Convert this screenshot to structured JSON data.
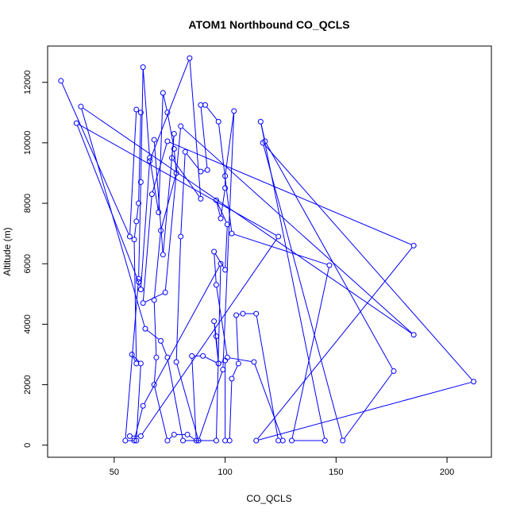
{
  "chart_data": {
    "type": "scatter",
    "title": "ATOM1 Northbound CO_QCLS",
    "xlabel": "CO_QCLS",
    "ylabel": "Altitude (m)",
    "xlim": [
      20,
      220
    ],
    "ylim": [
      -400,
      13200
    ],
    "xticks": [
      50,
      100,
      150,
      200
    ],
    "yticks": [
      0,
      2000,
      4000,
      6000,
      8000,
      10000,
      12000
    ],
    "grid": false,
    "legend": "none",
    "color": "#0000ff",
    "series": [
      {
        "mode": "lines+markers",
        "points": [
          [
            26,
            12050
          ],
          [
            57,
            6900
          ],
          [
            60,
            11100
          ],
          [
            62,
            11000
          ],
          [
            61,
            8000
          ],
          [
            60,
            7400
          ],
          [
            59,
            6800
          ],
          [
            60,
            2700
          ],
          [
            58,
            3000
          ],
          [
            62,
            2700
          ],
          [
            60,
            150
          ],
          [
            55,
            150
          ],
          [
            61,
            5500
          ],
          [
            62,
            8700
          ],
          [
            63,
            12500
          ],
          [
            66,
            9500
          ],
          [
            70,
            7700
          ],
          [
            72,
            11650
          ],
          [
            74,
            11000
          ],
          [
            77,
            9800
          ],
          [
            78,
            9000
          ],
          [
            71,
            7100
          ],
          [
            68,
            4800
          ],
          [
            69,
            2900
          ],
          [
            68,
            2000
          ],
          [
            74,
            150
          ],
          [
            77,
            350
          ],
          [
            83,
            350
          ],
          [
            87,
            150
          ],
          [
            85,
            2950
          ],
          [
            90,
            2950
          ],
          [
            97,
            2700
          ],
          [
            96,
            3600
          ],
          [
            95,
            4100
          ],
          [
            97,
            2700
          ],
          [
            100,
            2800
          ],
          [
            100,
            150
          ],
          [
            102,
            150
          ],
          [
            103,
            2200
          ],
          [
            106,
            2700
          ],
          [
            105,
            4300
          ],
          [
            108,
            4350
          ],
          [
            114,
            4350
          ],
          [
            124,
            150
          ],
          [
            126,
            150
          ],
          [
            113,
            2750
          ],
          [
            101,
            2900
          ],
          [
            96,
            5300
          ],
          [
            95,
            6400
          ],
          [
            100,
            5800
          ],
          [
            101,
            7300
          ],
          [
            96,
            8100
          ],
          [
            98,
            7500
          ],
          [
            100,
            8500
          ],
          [
            100,
            8900
          ],
          [
            104,
            11050
          ],
          [
            99,
            2500
          ],
          [
            88,
            150
          ],
          [
            78,
            2750
          ],
          [
            80,
            6900
          ],
          [
            82,
            9700
          ],
          [
            89,
            9050
          ],
          [
            92,
            9100
          ],
          [
            89,
            11250
          ],
          [
            91,
            11250
          ],
          [
            97,
            10700
          ],
          [
            103,
            7000
          ],
          [
            147,
            5950
          ],
          [
            130,
            150
          ],
          [
            145,
            150
          ],
          [
            116,
            10700
          ],
          [
            118,
            10050
          ],
          [
            176,
            2450
          ],
          [
            153,
            150
          ],
          [
            117,
            10000
          ],
          [
            212,
            2100
          ],
          [
            114,
            150
          ],
          [
            185,
            6600
          ],
          [
            74,
            10050
          ],
          [
            67,
            8300
          ],
          [
            63,
            4700
          ],
          [
            73,
            5050
          ],
          [
            80,
            10550
          ],
          [
            185,
            3650
          ],
          [
            35,
            11200
          ],
          [
            64,
            3850
          ],
          [
            71,
            3450
          ],
          [
            74,
            2900
          ],
          [
            81,
            150
          ],
          [
            96,
            150
          ],
          [
            98,
            6000
          ],
          [
            63,
            1300
          ],
          [
            59,
            150
          ],
          [
            57,
            300
          ],
          [
            62,
            300
          ],
          [
            124,
            6900
          ],
          [
            33,
            10650
          ],
          [
            61,
            5400
          ],
          [
            62,
            5150
          ],
          [
            66,
            9400
          ],
          [
            84,
            12800
          ],
          [
            89,
            8150
          ],
          [
            76,
            9500
          ],
          [
            77,
            10300
          ],
          [
            72,
            6300
          ],
          [
            68,
            10100
          ]
        ]
      }
    ]
  }
}
